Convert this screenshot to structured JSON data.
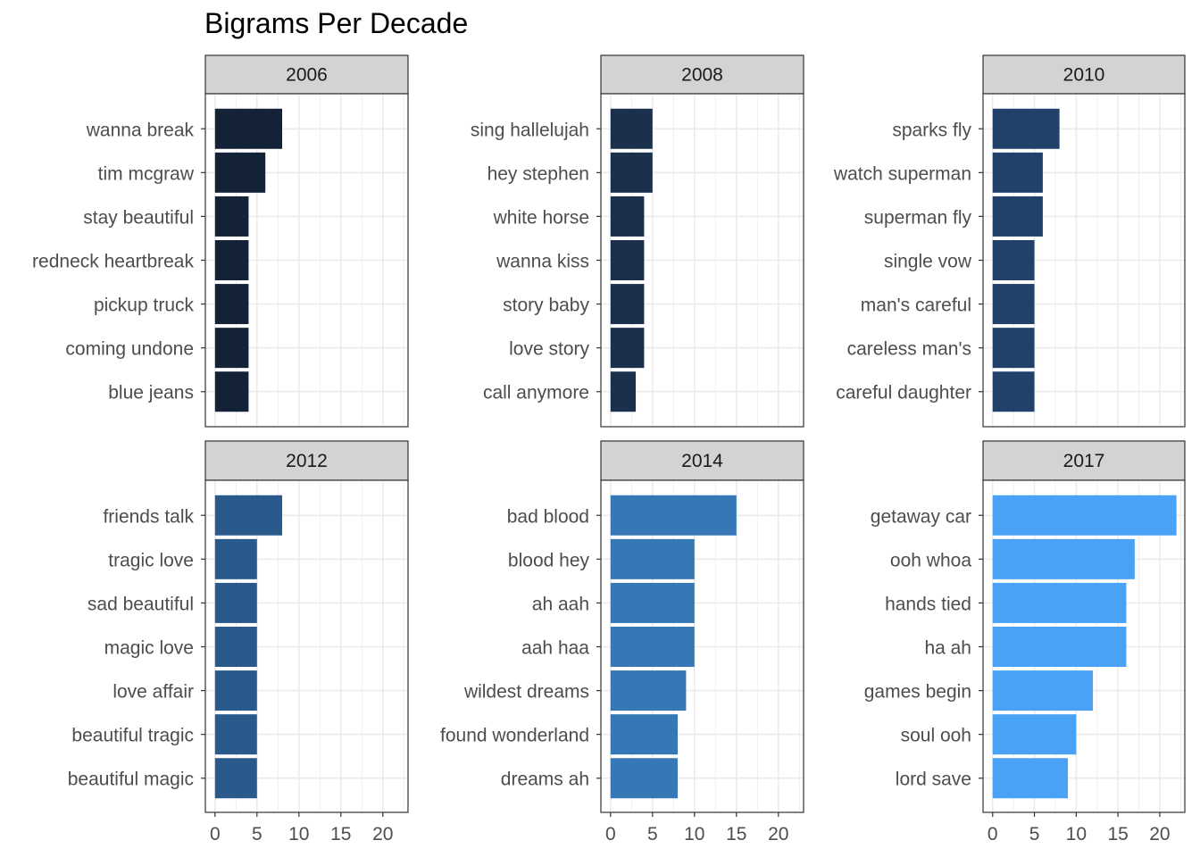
{
  "chart_data": {
    "type": "bar",
    "orientation": "horizontal",
    "title": "Bigrams Per Decade",
    "xlabel": "",
    "ylabel": "",
    "xlim": [
      0,
      23
    ],
    "x_ticks": [
      0,
      5,
      10,
      15,
      20
    ],
    "grid": true,
    "panels": [
      {
        "label": "2006",
        "color": "#132236",
        "categories": [
          "wanna break",
          "tim mcgraw",
          "stay beautiful",
          "redneck heartbreak",
          "pickup truck",
          "coming undone",
          "blue jeans"
        ],
        "values": [
          8,
          6,
          4,
          4,
          4,
          4,
          4
        ]
      },
      {
        "label": "2008",
        "color": "#1b304c",
        "categories": [
          "sing hallelujah",
          "hey stephen",
          "white horse",
          "wanna kiss",
          "story baby",
          "love story",
          "call anymore"
        ],
        "values": [
          5,
          5,
          4,
          4,
          4,
          4,
          3
        ]
      },
      {
        "label": "2010",
        "color": "#21416a",
        "categories": [
          "sparks fly",
          "watch superman",
          "superman fly",
          "single vow",
          "man's careful",
          "careless man's",
          "careful daughter"
        ],
        "values": [
          8,
          6,
          6,
          5,
          5,
          5,
          5
        ]
      },
      {
        "label": "2012",
        "color": "#2a5a8c",
        "categories": [
          "friends talk",
          "tragic love",
          "sad beautiful",
          "magic love",
          "love affair",
          "beautiful tragic",
          "beautiful magic"
        ],
        "values": [
          8,
          5,
          5,
          5,
          5,
          5,
          5
        ]
      },
      {
        "label": "2014",
        "color": "#3678b5",
        "categories": [
          "bad blood",
          "blood hey",
          "ah aah",
          "aah haa",
          "wildest dreams",
          "found wonderland",
          "dreams ah"
        ],
        "values": [
          15,
          10,
          10,
          10,
          9,
          8,
          8
        ]
      },
      {
        "label": "2017",
        "color": "#4aa2f6",
        "categories": [
          "getaway car",
          "ooh whoa",
          "hands tied",
          "ha ah",
          "games begin",
          "soul ooh",
          "lord save"
        ],
        "values": [
          22,
          17,
          16,
          16,
          12,
          10,
          9
        ]
      }
    ]
  }
}
